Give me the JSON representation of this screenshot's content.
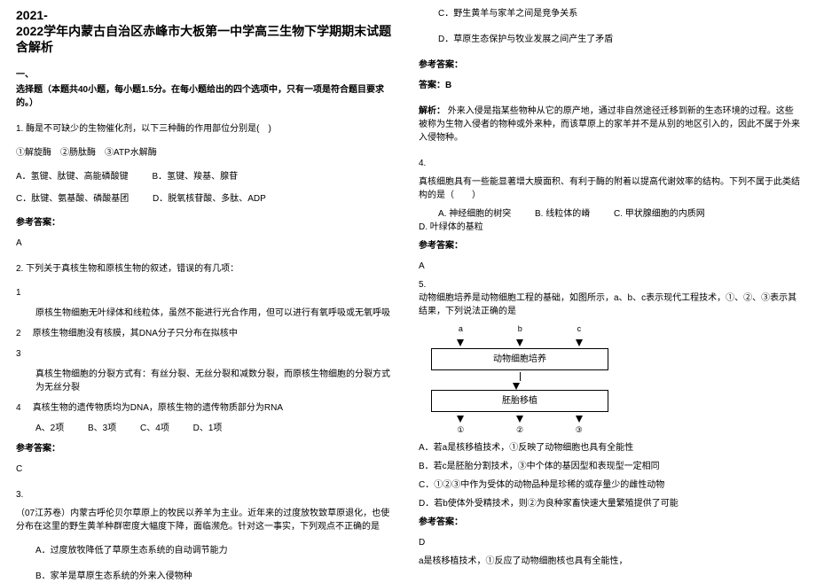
{
  "left": {
    "title_year": "2021-",
    "title": "2022学年内蒙古自治区赤峰市大板第一中学高三生物下学期期末试题含解析",
    "section_one": "一、",
    "instructions": "选择题（本题共40小题，每小题1.5分。在每小题给出的四个选项中，只有一项是符合题目要求的。）",
    "q1": {
      "text": "1. 酶是不可缺少的生物催化剂，以下三种酶的作用部位分别是(　)",
      "given": "①解旋酶　②肠肽酶　③ATP水解酶",
      "A": "A．氢键、肽键、高能磷酸键",
      "B": "B．氢键、羧基、腺苷",
      "C": "C．肽键、氨基酸、磷酸基团",
      "D": "D．脱氧核苷酸、多肽、ADP",
      "ans_label": "参考答案：",
      "ans": "A"
    },
    "q2": {
      "text": "2. 下列关于真核生物和原核生物的叙述，错误的有几项：",
      "s1_num": "1",
      "s1": "原核生物细胞无叶绿体和线粒体，虽然不能进行光合作用，但可以进行有氧呼吸或无氧呼吸",
      "s2_num": "2",
      "s2": "原核生物细胞没有核膜，其DNA分子只分布在拟核中",
      "s3_num": "3",
      "s3": "真核生物细胞的分裂方式有：有丝分裂、无丝分裂和减数分裂，而原核生物细胞的分裂方式为无丝分裂",
      "s4_num": "4",
      "s4": "真核生物的遗传物质均为DNA，原核生物的遗传物质部分为RNA",
      "A": "A、2项",
      "B": "B、3项",
      "C": "C、4项",
      "D": "D、1项",
      "ans_label": "参考答案：",
      "ans": "C"
    },
    "q3": {
      "num": "3.",
      "text": "（07江苏卷）内蒙古呼伦贝尔草原上的牧民以养羊为主业。近年来的过度放牧致草原退化，也使分布在这里的野生黄羊种群密度大幅度下降，面临濒危。针对这一事实，下列观点不正确的是",
      "A": "A．过度放牧降低了草原生态系统的自动调节能力",
      "B": "B．家羊是草原生态系统的外来入侵物种"
    }
  },
  "right": {
    "q3c": "C．野生黄羊与家羊之间是竞争关系",
    "q3d": "D．草原生态保护与牧业发展之间产生了矛盾",
    "ans_label": "参考答案：",
    "ans_line": "答案：B",
    "expl_label": "解析：",
    "expl": "外来入侵是指某些物种从它的原产地，通过非自然途径迁移到新的生态环境的过程。这些被称为生物入侵者的物种或外来种，而该草原上的家羊并不是从别的地区引入的，因此不属于外来入侵物种。",
    "q4": {
      "num": "4.",
      "text": "真核细胞具有一些能显著增大膜面积、有利于酶的附着以提高代谢效率的结构。下列不属于此类结构的是（　　）",
      "A": "A. 神经细胞的树突",
      "B": "B. 线粒体的嵴",
      "C": "C. 甲状腺细胞的内质网",
      "D": "D. 叶绿体的基粒",
      "ans_label": "参考答案：",
      "ans": "A"
    },
    "q5": {
      "num": "5.",
      "text": "动物细胞培养是动物细胞工程的基础，如图所示，a、b、c表示现代工程技术，①、②、③表示其结果，下列说法正确的是",
      "chart_a": "a",
      "chart_b": "b",
      "chart_c": "c",
      "chart_box1": "动物细胞培养",
      "chart_box2": "胚胎移植",
      "chart_n1": "①",
      "chart_n2": "②",
      "chart_n3": "③",
      "A": "A．若a是核移植技术，①反映了动物细胞也具有全能性",
      "B": "B．若c是胚胎分割技术，③中个体的基因型和表现型一定相同",
      "C": "C．①②③中作为受体的动物品种是珍稀的或存量少的雌性动物",
      "D": "D．若b使体外受精技术，则②为良种家畜快速大量繁殖提供了可能",
      "ans_label": "参考答案：",
      "ans": "D",
      "tail": "a是核移植技术，①反应了动物细胞核也具有全能性，"
    }
  }
}
